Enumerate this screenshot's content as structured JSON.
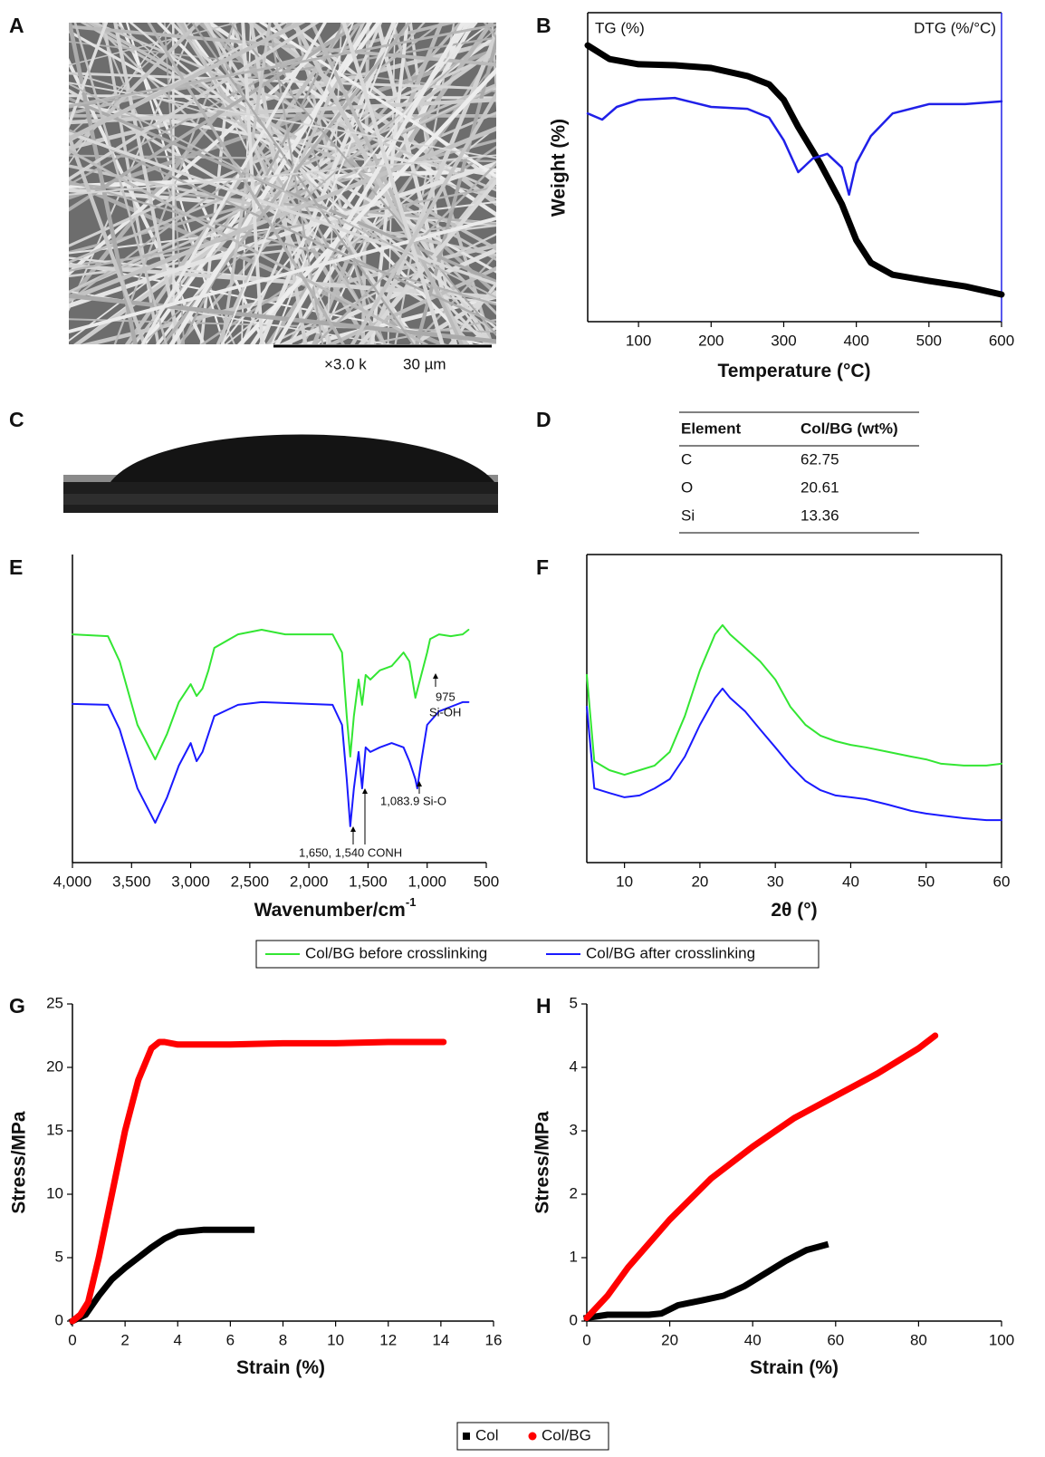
{
  "panel_labels": [
    "A",
    "B",
    "C",
    "D",
    "E",
    "F",
    "G",
    "H"
  ],
  "sem": {
    "magnification": "×3.0 k",
    "scale_length": "30 µm"
  },
  "table": {
    "header": [
      "Element",
      "Col/BG (wt%)"
    ],
    "rows": [
      [
        "C",
        "62.75"
      ],
      [
        "O",
        "20.61"
      ],
      [
        "Si",
        "13.36"
      ]
    ]
  },
  "chart_data": [
    {
      "type": "line",
      "x_label": "Temperature (°C)",
      "y_label": "Weight (%)",
      "xlim": [
        30,
        600
      ],
      "xticks": [
        100,
        200,
        300,
        400,
        500,
        600
      ],
      "ylim": [
        0,
        100
      ],
      "y2lim": [
        0,
        100
      ],
      "series": [
        {
          "name": "TG (%)",
          "color": "#000000",
          "x": [
            30,
            60,
            100,
            150,
            200,
            250,
            280,
            300,
            320,
            350,
            380,
            400,
            420,
            450,
            500,
            550,
            600
          ],
          "values": [
            89.4,
            85.0,
            83.3,
            83.0,
            82.1,
            79.5,
            76.8,
            71.8,
            63.0,
            51.3,
            38.1,
            26.4,
            19.1,
            15.2,
            13.2,
            11.4,
            8.8
          ]
        },
        {
          "name": "DTG (%/°C)",
          "color": "#2020e8",
          "axis": "y2",
          "x": [
            30,
            50,
            70,
            100,
            150,
            200,
            250,
            280,
            300,
            320,
            340,
            360,
            380,
            390,
            400,
            420,
            450,
            500,
            550,
            600
          ],
          "values": [
            67.4,
            65.4,
            69.5,
            71.8,
            72.4,
            69.5,
            68.9,
            66.0,
            58.7,
            48.4,
            52.8,
            54.3,
            49.9,
            41.1,
            51.3,
            60.1,
            67.4,
            70.4,
            70.4,
            71.3
          ]
        }
      ]
    },
    {
      "type": "line",
      "x_label": "Wavenumber/cm",
      "x_label_sup": "-1",
      "xlim": [
        4000,
        500
      ],
      "xticks": [
        {
          "value": 4000,
          "label": "4,000"
        },
        {
          "value": 3500,
          "label": "3,500"
        },
        {
          "value": 3000,
          "label": "3,000"
        },
        {
          "value": 2500,
          "label": "2,500"
        },
        {
          "value": 2000,
          "label": "2,000"
        },
        {
          "value": 1500,
          "label": "1,500"
        },
        {
          "value": 1000,
          "label": "1,000"
        },
        500
      ],
      "ylim": [
        0,
        100
      ],
      "annotations": [
        "975",
        "Si-OH",
        "1,083.9 Si-O",
        "1,650, 1,540 CONH"
      ],
      "series": [
        {
          "name": "Col/BG before crosslinking",
          "color": "#33e633",
          "x": [
            4000,
            3700,
            3600,
            3450,
            3300,
            3200,
            3100,
            3000,
            2950,
            2900,
            2850,
            2800,
            2600,
            2400,
            2200,
            2000,
            1800,
            1720,
            1680,
            1650,
            1620,
            1580,
            1550,
            1520,
            1480,
            1400,
            1300,
            1200,
            1150,
            1100,
            1080,
            1000,
            975,
            900,
            800,
            700,
            650
          ],
          "values": [
            74.1,
            73.5,
            65.3,
            44.7,
            33.5,
            41.8,
            52.1,
            57.9,
            54.1,
            56.5,
            62.4,
            69.7,
            74.1,
            75.6,
            74.1,
            74.1,
            74.1,
            68.2,
            47.6,
            34.4,
            47.6,
            59.4,
            51.2,
            60.9,
            59.4,
            62.4,
            63.8,
            68.2,
            65.3,
            53.5,
            56.5,
            68.2,
            72.6,
            74.1,
            73.5,
            74.1,
            75.6
          ]
        },
        {
          "name": "Col/BG after crosslinking",
          "color": "#1a1aff",
          "x": [
            4000,
            3700,
            3600,
            3450,
            3300,
            3200,
            3100,
            3000,
            2950,
            2900,
            2850,
            2800,
            2600,
            2400,
            2200,
            2000,
            1800,
            1720,
            1680,
            1650,
            1620,
            1580,
            1550,
            1520,
            1480,
            1400,
            1300,
            1200,
            1150,
            1100,
            1083.9,
            1050,
            1000,
            900,
            800,
            700,
            650
          ],
          "values": [
            51.5,
            51.2,
            43.2,
            24.1,
            12.9,
            21.2,
            31.5,
            38.8,
            32.9,
            35.9,
            41.8,
            47.6,
            51.2,
            52.1,
            51.8,
            51.5,
            51.2,
            44.7,
            27.1,
            11.8,
            24.1,
            35.9,
            24.1,
            37.4,
            35.9,
            37.4,
            38.8,
            37.4,
            32.9,
            27.1,
            24.1,
            32.9,
            44.7,
            49.1,
            50.6,
            52.1,
            52.1
          ]
        }
      ]
    },
    {
      "type": "line",
      "x_label": "2θ (°)",
      "xlim": [
        5,
        60
      ],
      "xticks": [
        10,
        20,
        30,
        40,
        50,
        60
      ],
      "ylim": [
        0,
        100
      ],
      "series": [
        {
          "color": "#33e633",
          "x": [
            5,
            6,
            8,
            10,
            12,
            14,
            16,
            18,
            20,
            22,
            23,
            24,
            26,
            28,
            30,
            32,
            34,
            36,
            38,
            40,
            42,
            45,
            48,
            50,
            52,
            55,
            58,
            60
          ],
          "values": [
            60.9,
            32.9,
            30.0,
            28.5,
            30.0,
            31.5,
            35.9,
            47.6,
            62.4,
            74.1,
            77.1,
            74.1,
            69.7,
            65.3,
            59.4,
            50.6,
            44.7,
            41.2,
            39.4,
            38.2,
            37.4,
            35.9,
            34.4,
            33.5,
            32.1,
            31.5,
            31.5,
            32.1
          ]
        },
        {
          "color": "#1a1aff",
          "x": [
            5,
            6,
            8,
            10,
            12,
            14,
            16,
            18,
            20,
            22,
            23,
            24,
            26,
            28,
            30,
            32,
            34,
            36,
            38,
            40,
            42,
            45,
            48,
            50,
            52,
            55,
            58,
            60
          ],
          "values": [
            50.6,
            24.1,
            22.6,
            21.2,
            21.8,
            24.1,
            27.1,
            34.4,
            44.7,
            53.5,
            56.5,
            53.5,
            49.1,
            43.2,
            37.4,
            31.5,
            26.5,
            23.5,
            21.8,
            21.2,
            20.6,
            18.8,
            16.8,
            15.9,
            15.3,
            14.4,
            13.8,
            13.8
          ]
        }
      ]
    },
    {
      "type": "line",
      "x_label": "Strain (%)",
      "y_label": "Stress/MPa",
      "xlim": [
        0,
        16
      ],
      "xticks": [
        0,
        2,
        4,
        6,
        8,
        10,
        12,
        14,
        16
      ],
      "ylim": [
        0,
        25
      ],
      "yticks": [
        0,
        5,
        10,
        15,
        20,
        25
      ],
      "series": [
        {
          "name": "Col",
          "color": "#000000",
          "x": [
            0,
            0.5,
            1,
            1.5,
            2,
            2.5,
            3,
            3.5,
            4,
            5,
            6,
            6.8
          ],
          "values": [
            0,
            0.5,
            2,
            3.3,
            4.2,
            5,
            5.8,
            6.5,
            7,
            7.2,
            7.2,
            7.2
          ]
        },
        {
          "name": "Col/BG",
          "color": "#ff0000",
          "x": [
            0,
            0.3,
            0.6,
            1,
            1.5,
            2,
            2.5,
            3,
            3.3,
            3.5,
            4,
            5,
            6,
            8,
            10,
            12,
            14.1
          ],
          "values": [
            0,
            0.5,
            1.5,
            5,
            10,
            15,
            19,
            21.5,
            22,
            22,
            21.8,
            21.8,
            21.8,
            21.9,
            21.9,
            22,
            22
          ]
        }
      ]
    },
    {
      "type": "line",
      "x_label": "Strain (%)",
      "y_label": "Stress/MPa",
      "xlim": [
        0,
        100
      ],
      "xticks": [
        0,
        20,
        40,
        60,
        80,
        100
      ],
      "ylim": [
        0,
        5
      ],
      "yticks": [
        0,
        1,
        2,
        3,
        4,
        5
      ],
      "series": [
        {
          "color": "#000000",
          "x": [
            0,
            5,
            10,
            15,
            18,
            22,
            28,
            33,
            38,
            43,
            48,
            53,
            57.5
          ],
          "values": [
            0.05,
            0.1,
            0.1,
            0.1,
            0.12,
            0.25,
            0.33,
            0.4,
            0.55,
            0.75,
            0.95,
            1.12,
            1.2
          ]
        },
        {
          "color": "#ff0000",
          "x": [
            0,
            5,
            10,
            20,
            30,
            40,
            50,
            60,
            70,
            80,
            84
          ],
          "values": [
            0.05,
            0.4,
            0.85,
            1.6,
            2.25,
            2.75,
            3.2,
            3.55,
            3.9,
            4.3,
            4.5
          ]
        }
      ]
    }
  ]
}
